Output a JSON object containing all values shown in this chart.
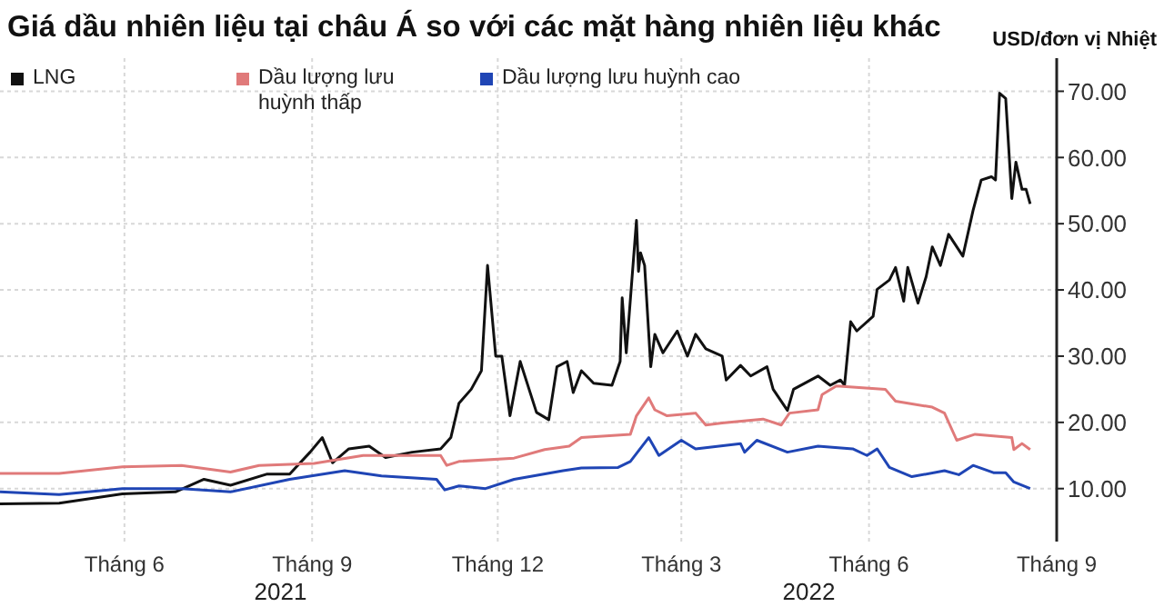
{
  "chart_data": {
    "type": "line",
    "title": "Giá dầu nhiên liệu tại châu Á so với các mặt hàng nhiên liệu khác",
    "ylabel": "USD/đơn vị Nhiệt",
    "annotations": [
      "2021",
      "2022"
    ],
    "legend": "top left",
    "grid": true,
    "xlim": [
      "2021-04-01",
      "2022-09-01"
    ],
    "xticks": [
      {
        "value": "2021-06-01",
        "label": "Tháng 6"
      },
      {
        "value": "2021-09-01",
        "label": "Tháng 9"
      },
      {
        "value": "2021-12-01",
        "label": "Tháng 12"
      },
      {
        "value": "2022-03-01",
        "label": "Tháng 3"
      },
      {
        "value": "2022-06-01",
        "label": "Tháng 6"
      },
      {
        "value": "2022-09-01",
        "label": "Tháng 9"
      }
    ],
    "ylim": [
      2,
      75
    ],
    "yticks": [
      {
        "value": 10,
        "label": "10.00"
      },
      {
        "value": 20,
        "label": "20.00"
      },
      {
        "value": 30,
        "label": "30.00"
      },
      {
        "value": 40,
        "label": "40.00"
      },
      {
        "value": 50,
        "label": "50.00"
      },
      {
        "value": 60,
        "label": "60.00"
      },
      {
        "value": 70,
        "label": "70.00"
      }
    ],
    "series": [
      {
        "name": "LNG",
        "color": "#111111",
        "x": [
          "2021-04-01",
          "2021-04-30",
          "2021-05-31",
          "2021-06-26",
          "2021-07-10",
          "2021-07-23",
          "2021-08-10",
          "2021-08-21",
          "2021-08-31",
          "2021-09-06",
          "2021-09-11",
          "2021-09-19",
          "2021-09-29",
          "2021-10-07",
          "2021-10-20",
          "2021-11-03",
          "2021-11-08",
          "2021-11-12",
          "2021-11-18",
          "2021-11-23",
          "2021-11-26",
          "2021-11-30",
          "2021-12-03",
          "2021-12-07",
          "2021-12-12",
          "2021-12-20",
          "2021-12-26",
          "2021-12-30",
          "2022-01-04",
          "2022-01-07",
          "2022-01-11",
          "2022-01-17",
          "2022-01-26",
          "2022-01-30",
          "2022-01-31",
          "2022-02-02",
          "2022-02-07",
          "2022-02-08",
          "2022-02-09",
          "2022-02-11",
          "2022-02-14",
          "2022-02-16",
          "2022-02-20",
          "2022-02-27",
          "2022-03-04",
          "2022-03-08",
          "2022-03-13",
          "2022-03-21",
          "2022-03-23",
          "2022-03-30",
          "2022-04-04",
          "2022-04-12",
          "2022-04-15",
          "2022-04-22",
          "2022-04-25",
          "2022-05-07",
          "2022-05-13",
          "2022-05-18",
          "2022-05-20",
          "2022-05-23",
          "2022-05-26",
          "2022-06-03",
          "2022-06-05",
          "2022-06-11",
          "2022-06-14",
          "2022-06-18",
          "2022-06-20",
          "2022-06-25",
          "2022-06-29",
          "2022-07-02",
          "2022-07-06",
          "2022-07-10",
          "2022-07-17",
          "2022-07-22",
          "2022-07-26",
          "2022-07-31",
          "2022-08-02",
          "2022-08-04",
          "2022-08-07",
          "2022-08-10",
          "2022-08-12",
          "2022-08-15",
          "2022-08-17",
          "2022-08-19"
        ],
        "values": [
          7.7,
          7.8,
          9.2,
          9.5,
          11.4,
          10.5,
          12.2,
          12.2,
          15.5,
          17.7,
          13.9,
          16,
          16.4,
          14.7,
          15.5,
          16,
          17.7,
          22.9,
          25,
          27.8,
          43.7,
          30,
          30,
          21,
          29.2,
          21.5,
          20.4,
          28.4,
          29.2,
          24.5,
          27.8,
          25.9,
          25.6,
          29.2,
          38.8,
          30.5,
          50.5,
          42.8,
          45.6,
          43.7,
          28.4,
          33.3,
          30.5,
          33.8,
          30,
          33.3,
          31.1,
          30,
          26.4,
          28.6,
          27,
          28.4,
          25,
          21.8,
          25,
          27,
          25.6,
          26.4,
          25.6,
          35.2,
          33.8,
          36,
          40.1,
          41.5,
          43.4,
          38.3,
          43.4,
          38,
          42,
          46.5,
          43.7,
          48.4,
          45.1,
          52,
          56.6,
          57.1,
          56.6,
          69.7,
          68.9,
          53.8,
          59.3,
          55.2,
          55.2,
          53
        ]
      },
      {
        "name": "Dầu lượng lưu huỳnh thấp",
        "color": "#e07a7a",
        "x": [
          "2021-04-01",
          "2021-04-30",
          "2021-05-31",
          "2021-06-29",
          "2021-07-23",
          "2021-08-06",
          "2021-09-02",
          "2021-09-26",
          "2021-11-03",
          "2021-11-06",
          "2021-11-12",
          "2021-12-09",
          "2021-12-24",
          "2022-01-05",
          "2022-01-11",
          "2022-02-04",
          "2022-02-07",
          "2022-02-13",
          "2022-02-16",
          "2022-02-22",
          "2022-03-08",
          "2022-03-13",
          "2022-03-21",
          "2022-04-10",
          "2022-04-19",
          "2022-04-23",
          "2022-05-07",
          "2022-05-09",
          "2022-05-16",
          "2022-06-09",
          "2022-06-14",
          "2022-07-02",
          "2022-07-08",
          "2022-07-14",
          "2022-07-23",
          "2022-08-10",
          "2022-08-11",
          "2022-08-15",
          "2022-08-19"
        ],
        "values": [
          12.3,
          12.3,
          13.3,
          13.5,
          12.5,
          13.5,
          13.8,
          15,
          15,
          13.5,
          14.1,
          14.6,
          15.9,
          16.4,
          17.7,
          18.2,
          21,
          23.7,
          21.9,
          21,
          21.4,
          19.6,
          19.9,
          20.5,
          19.6,
          21.4,
          21.9,
          24.2,
          25.5,
          25,
          23.2,
          22.3,
          21.4,
          17.3,
          18.2,
          17.7,
          15.9,
          16.8,
          15.9
        ]
      },
      {
        "name": "Dầu lượng lưu huỳnh cao",
        "color": "#1f45b5",
        "x": [
          "2021-04-01",
          "2021-04-30",
          "2021-05-31",
          "2021-06-29",
          "2021-07-23",
          "2021-08-21",
          "2021-09-17",
          "2021-10-05",
          "2021-11-01",
          "2021-11-05",
          "2021-11-12",
          "2021-11-25",
          "2021-12-09",
          "2022-01-02",
          "2022-01-11",
          "2022-01-29",
          "2022-02-04",
          "2022-02-13",
          "2022-02-18",
          "2022-03-01",
          "2022-03-08",
          "2022-03-30",
          "2022-04-01",
          "2022-04-07",
          "2022-04-22",
          "2022-05-07",
          "2022-05-24",
          "2022-05-31",
          "2022-06-05",
          "2022-06-11",
          "2022-06-22",
          "2022-07-08",
          "2022-07-15",
          "2022-07-22",
          "2022-08-01",
          "2022-08-07",
          "2022-08-11",
          "2022-08-19"
        ],
        "values": [
          9.5,
          9.1,
          10,
          10,
          9.5,
          11.4,
          12.7,
          11.9,
          11.4,
          9.8,
          10.4,
          10,
          11.4,
          12.7,
          13.1,
          13.2,
          14.1,
          17.7,
          15,
          17.3,
          16,
          16.8,
          15.5,
          17.3,
          15.5,
          16.4,
          16,
          15,
          16,
          13.2,
          11.8,
          12.7,
          12.1,
          13.5,
          12.4,
          12.4,
          11,
          10
        ]
      }
    ]
  }
}
